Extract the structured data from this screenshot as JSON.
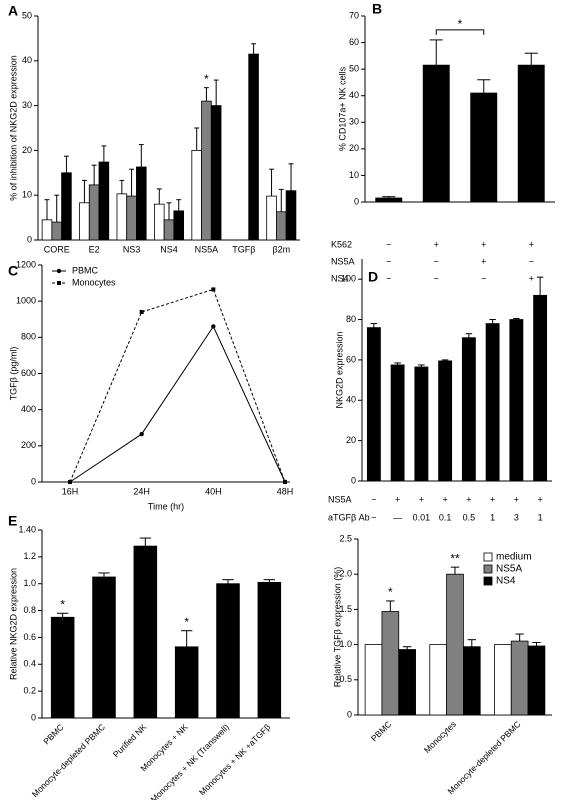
{
  "chart_data": [
    {
      "panel_label": "A",
      "type": "bar",
      "ylabel": "% of  inhibition of  NKG2D expression",
      "categories": [
        "CORE",
        "E2",
        "NS3",
        "NS4",
        "NS5A",
        "TGFβ",
        "β2m"
      ],
      "ylim": [
        0,
        50
      ],
      "yticks": [
        0,
        10,
        20,
        30,
        40,
        50
      ],
      "series": [
        {
          "color": "#ffffff",
          "values": [
            4.5,
            8.3,
            10.3,
            8,
            20,
            null,
            9.8
          ],
          "errors": [
            4.5,
            5,
            3,
            3.4,
            5,
            null,
            6
          ]
        },
        {
          "color": "#808080",
          "values": [
            4,
            12.3,
            9.8,
            4.5,
            31,
            null,
            6.3
          ],
          "errors": [
            6,
            4.4,
            6,
            3.8,
            3,
            null,
            5
          ],
          "annotations": [
            null,
            null,
            null,
            null,
            "*",
            null,
            null
          ]
        },
        {
          "color": "#000000",
          "values": [
            15,
            17.4,
            16.3,
            6.5,
            30,
            41.5,
            11
          ],
          "errors": [
            3.7,
            3.6,
            5,
            2.5,
            5.7,
            2.3,
            6
          ]
        }
      ]
    },
    {
      "panel_label": "B",
      "type": "bar",
      "ylabel": "% CD107a+ NK cells",
      "ylim": [
        0,
        70
      ],
      "yticks": [
        0,
        10,
        20,
        30,
        40,
        50,
        60,
        70
      ],
      "color": "#000000",
      "values": [
        1.5,
        51.5,
        41,
        51.5
      ],
      "errors": [
        0.5,
        9.5,
        5,
        4.5
      ],
      "annotations": [
        null,
        "*",
        null,
        null
      ],
      "annotation_style": "bracket",
      "conditions": [
        {
          "name": "K562",
          "values": [
            "−",
            "+",
            "+",
            "+"
          ]
        },
        {
          "name": "NS5A",
          "values": [
            "−",
            "−",
            "+",
            "−"
          ]
        },
        {
          "name": "NS4",
          "values": [
            "−",
            "−",
            "−",
            "+"
          ]
        }
      ]
    },
    {
      "panel_label": "C",
      "type": "line",
      "ylabel": "TGFβ (pg/ml)",
      "xlabel": "Time (hr)",
      "categories": [
        "16H",
        "24H",
        "40H",
        "48H"
      ],
      "ylim": [
        0,
        1200
      ],
      "yticks": [
        0,
        200,
        400,
        600,
        800,
        1000,
        1200
      ],
      "legend": "upper left",
      "series": [
        {
          "name": "PBMC",
          "color": "#000000",
          "line_style": "solid",
          "marker": "circle",
          "values": [
            0,
            265,
            860,
            0
          ]
        },
        {
          "name": "Monocytes",
          "color": "#000000",
          "line_style": "dashed",
          "marker": "square",
          "values": [
            0,
            940,
            1065,
            0
          ]
        }
      ]
    },
    {
      "panel_label": "D",
      "type": "bar",
      "ylabel": "NKG2D expression",
      "ylim": [
        0,
        110
      ],
      "yticks": [
        0,
        20,
        40,
        60,
        80,
        100
      ],
      "color": "#000000",
      "values": [
        76,
        57.5,
        56.5,
        59.5,
        71,
        78,
        80,
        92
      ],
      "errors": [
        2,
        1,
        1,
        0.5,
        2,
        2,
        0.5,
        9
      ],
      "conditions": [
        {
          "name": "NS5A",
          "values": [
            "−",
            "+",
            "+",
            "+",
            "+",
            "+",
            "+",
            "+"
          ]
        },
        {
          "name": "aTGFβ Ab",
          "values": [
            "−",
            "—",
            "0.01",
            "0.1",
            "0.5",
            "1",
            "3",
            "1"
          ]
        }
      ]
    },
    {
      "panel_label": "E",
      "type": "bar",
      "ylabel": "Relative NKG2D expression",
      "categories": [
        "PBMC",
        "Monocyte-depleted PBMC",
        "Purified NK",
        "Monocytes + NK",
        "Monocytes + NK (Transwell)",
        "Monocytes + NK +aTGFβ"
      ],
      "rotate_labels": true,
      "ylim": [
        0,
        1.4
      ],
      "yticks": [
        0,
        0.2,
        0.4,
        0.6,
        0.8,
        {
          "value": 1,
          "label": "1.0"
        },
        1.2,
        {
          "value": 1.4,
          "label": "1.40"
        }
      ],
      "color": "#000000",
      "values": [
        0.75,
        1.05,
        1.28,
        0.53,
        1.0,
        1.01
      ],
      "errors": [
        0.03,
        0.03,
        0.06,
        0.12,
        0.03,
        0.02
      ],
      "annotations": [
        "*",
        null,
        null,
        "*",
        null,
        null
      ]
    },
    {
      "type": "bar",
      "ylabel": "Relative TGFβ  expression (%)",
      "categories": [
        "PBMC",
        "Monocytes",
        "Monocyte-depleted PBMC"
      ],
      "rotate_labels": true,
      "ylim": [
        0,
        2.5
      ],
      "yticks": [
        0,
        0.5,
        {
          "value": 1,
          "label": "1.0"
        },
        1.5,
        {
          "value": 2,
          "label": "2.0"
        },
        2.5
      ],
      "legend": "upper right",
      "series": [
        {
          "name": "medium",
          "color": "#ffffff",
          "values": [
            1,
            1,
            1
          ]
        },
        {
          "name": "NS5A",
          "color": "#808080",
          "values": [
            1.47,
            2.0,
            1.05
          ],
          "errors": [
            0.15,
            0.1,
            0.1
          ],
          "annotations": [
            "*",
            "**",
            null
          ]
        },
        {
          "name": "NS4",
          "color": "#000000",
          "values": [
            0.93,
            0.97,
            0.98
          ],
          "errors": [
            0.04,
            0.1,
            0.05
          ]
        }
      ]
    }
  ]
}
